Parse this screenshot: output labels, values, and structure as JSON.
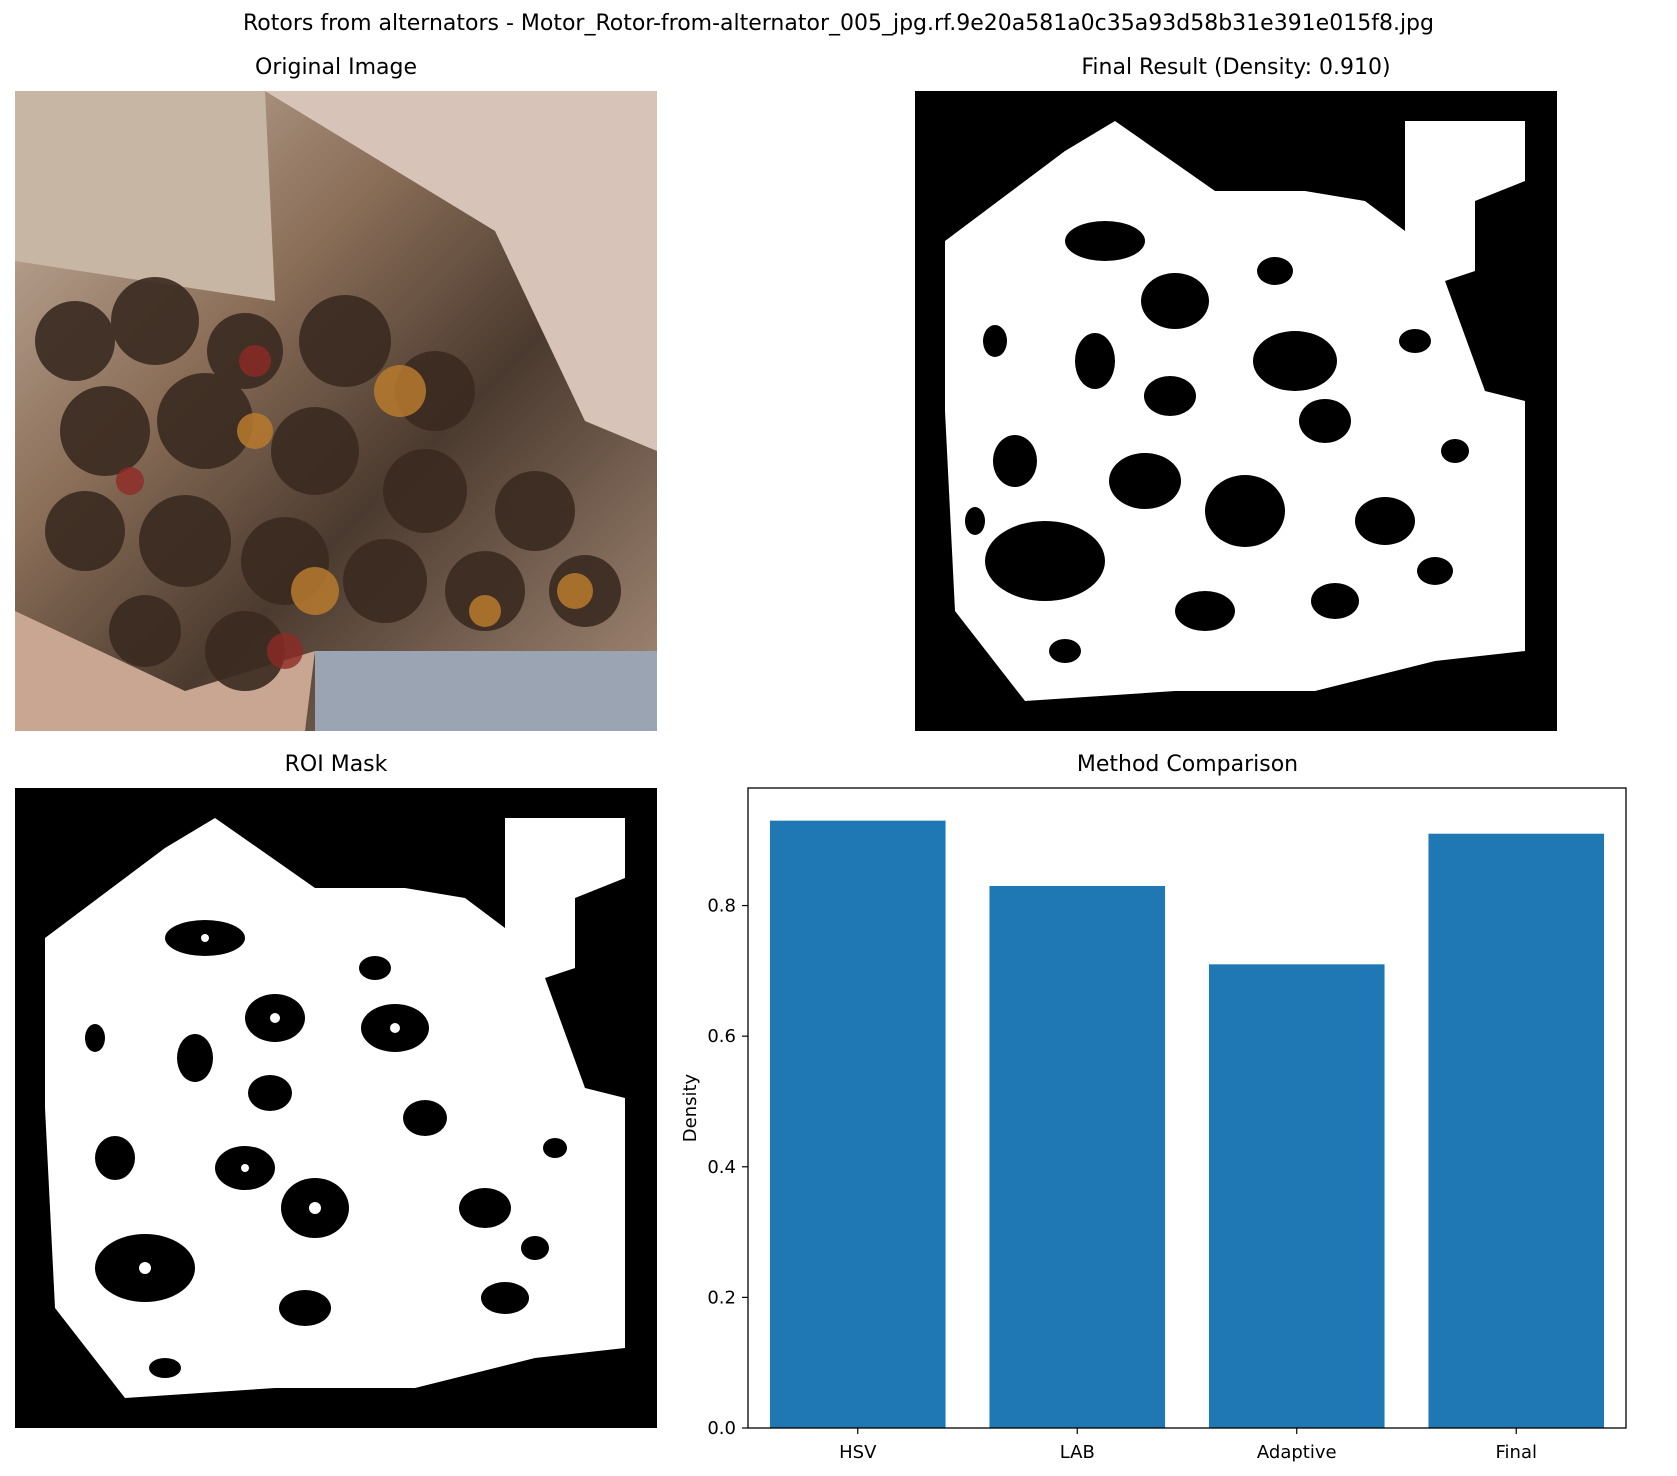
{
  "figure_title": "Rotors from alternators - Motor_Rotor-from-alternator_005_jpg.rf.9e20a581a0c35a93d58b31e391e015f8.jpg",
  "panels": {
    "original": {
      "title": "Original Image"
    },
    "final": {
      "title": "Final Result (Density: 0.910)"
    },
    "roi": {
      "title": "ROI Mask"
    },
    "comparison": {
      "title": "Method Comparison"
    }
  },
  "chart_data": {
    "type": "bar",
    "title": "Method Comparison",
    "xlabel": "",
    "ylabel": "Density",
    "categories": [
      "HSV",
      "LAB",
      "Adaptive",
      "Final"
    ],
    "values": [
      0.93,
      0.83,
      0.71,
      0.91
    ],
    "ylim": [
      0,
      0.98
    ],
    "yticks": [
      "0.0",
      "0.2",
      "0.4",
      "0.6",
      "0.8"
    ],
    "bar_color": "#1f77b4",
    "grid": false
  }
}
